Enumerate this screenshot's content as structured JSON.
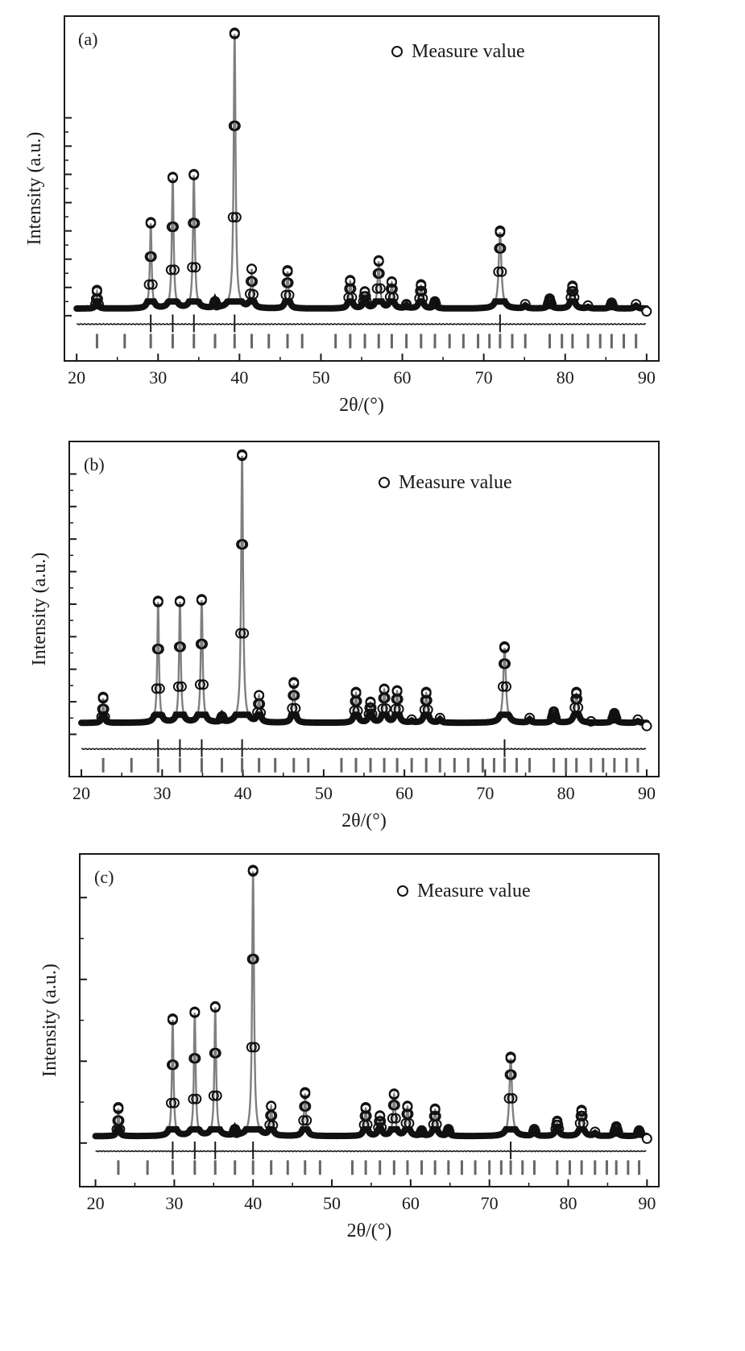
{
  "figure": {
    "panels": [
      "a",
      "b",
      "c"
    ]
  },
  "colors": {
    "measured": "#111111",
    "calculated": "#7f7f7f",
    "difference": "#1a1a1a",
    "bragg": "#666666",
    "axis": "#1a1a1a"
  },
  "chart_data": [
    {
      "type": "line",
      "panel_label": "(a)",
      "xlabel": "2θ/(°)",
      "ylabel": "Intensity (a.u.)",
      "legend": {
        "entries": [
          "Measure value"
        ],
        "placement": "top-right"
      },
      "xlim": [
        18.5,
        91.5
      ],
      "ylim": [
        -1.6,
        10.6
      ],
      "xticks": [
        20,
        30,
        40,
        50,
        60,
        70,
        80,
        90
      ],
      "xtick_labels": [
        "20",
        "30",
        "40",
        "50",
        "60",
        "70",
        "80",
        "90"
      ],
      "yticks": [
        0,
        1,
        2,
        3,
        4,
        5,
        6,
        7
      ],
      "grid": false,
      "background": 0.25,
      "peaks": [
        {
          "x": 22.5,
          "y": 0.85
        },
        {
          "x": 29.1,
          "y": 3.25
        },
        {
          "x": 31.8,
          "y": 4.85
        },
        {
          "x": 34.4,
          "y": 4.95
        },
        {
          "x": 37.0,
          "y": 0.45
        },
        {
          "x": 39.4,
          "y": 9.95
        },
        {
          "x": 41.5,
          "y": 1.6
        },
        {
          "x": 45.9,
          "y": 1.55
        },
        {
          "x": 53.6,
          "y": 1.2
        },
        {
          "x": 55.4,
          "y": 0.8
        },
        {
          "x": 57.1,
          "y": 1.9
        },
        {
          "x": 58.7,
          "y": 1.15
        },
        {
          "x": 60.5,
          "y": 0.35
        },
        {
          "x": 62.3,
          "y": 1.05
        },
        {
          "x": 64.0,
          "y": 0.45
        },
        {
          "x": 72.0,
          "y": 2.95
        },
        {
          "x": 75.1,
          "y": 0.35
        },
        {
          "x": 78.1,
          "y": 0.55
        },
        {
          "x": 80.9,
          "y": 1.0
        },
        {
          "x": 82.8,
          "y": 0.3
        },
        {
          "x": 85.7,
          "y": 0.4
        },
        {
          "x": 88.7,
          "y": 0.35
        }
      ],
      "difference_offset": -0.3,
      "bragg_row": -0.9,
      "bragg_positions": [
        22.5,
        25.9,
        29.1,
        31.8,
        34.4,
        37.0,
        39.4,
        41.5,
        43.6,
        45.9,
        47.7,
        51.8,
        53.6,
        55.4,
        57.1,
        58.7,
        60.5,
        62.3,
        64.0,
        65.8,
        67.5,
        69.3,
        70.7,
        72.0,
        73.5,
        75.1,
        78.1,
        79.6,
        80.9,
        82.8,
        84.3,
        85.7,
        87.2,
        88.7
      ]
    },
    {
      "type": "line",
      "panel_label": "(b)",
      "xlabel": "2θ/(°)",
      "ylabel": "Intensity (a.u.)",
      "legend": {
        "entries": [
          "Measure value"
        ],
        "placement": "top-right"
      },
      "xlim": [
        18.5,
        91.5
      ],
      "ylim": [
        -1.3,
        9.0
      ],
      "xticks": [
        20,
        30,
        40,
        50,
        60,
        70,
        80,
        90
      ],
      "xtick_labels": [
        "20",
        "30",
        "40",
        "50",
        "60",
        "70",
        "80",
        "90"
      ],
      "yticks": [
        0,
        1,
        2,
        3,
        4,
        5,
        6,
        7,
        8
      ],
      "grid": false,
      "background": 0.35,
      "peaks": [
        {
          "x": 22.7,
          "y": 1.1
        },
        {
          "x": 29.5,
          "y": 4.05
        },
        {
          "x": 32.2,
          "y": 4.05
        },
        {
          "x": 34.9,
          "y": 4.1
        },
        {
          "x": 37.4,
          "y": 0.5
        },
        {
          "x": 39.9,
          "y": 8.55
        },
        {
          "x": 42.0,
          "y": 1.15
        },
        {
          "x": 46.3,
          "y": 1.55
        },
        {
          "x": 54.0,
          "y": 1.25
        },
        {
          "x": 55.8,
          "y": 0.95
        },
        {
          "x": 57.5,
          "y": 1.35
        },
        {
          "x": 59.1,
          "y": 1.3
        },
        {
          "x": 60.9,
          "y": 0.4
        },
        {
          "x": 62.7,
          "y": 1.25
        },
        {
          "x": 64.4,
          "y": 0.45
        },
        {
          "x": 72.4,
          "y": 2.65
        },
        {
          "x": 75.5,
          "y": 0.45
        },
        {
          "x": 78.5,
          "y": 0.65
        },
        {
          "x": 81.3,
          "y": 1.25
        },
        {
          "x": 83.1,
          "y": 0.35
        },
        {
          "x": 86.0,
          "y": 0.6
        },
        {
          "x": 88.9,
          "y": 0.4
        }
      ],
      "difference_offset": -0.45,
      "bragg_row": -0.95,
      "bragg_positions": [
        22.7,
        26.2,
        29.5,
        32.2,
        34.9,
        37.4,
        39.9,
        42.0,
        44.0,
        46.3,
        48.1,
        52.2,
        54.0,
        55.8,
        57.5,
        59.1,
        60.9,
        62.7,
        64.4,
        66.2,
        67.9,
        69.7,
        71.1,
        72.4,
        73.9,
        75.5,
        78.5,
        80.0,
        81.3,
        83.1,
        84.6,
        86.0,
        87.5,
        88.9
      ]
    },
    {
      "type": "line",
      "panel_label": "(c)",
      "xlabel": "2θ/(°)",
      "ylabel": "Intensity (a.u.)",
      "legend": {
        "entries": [
          "Measure value"
        ],
        "placement": "top-right"
      },
      "xlim": [
        18.0,
        91.5
      ],
      "ylim": [
        -1.6,
        10.6
      ],
      "xticks": [
        20,
        30,
        40,
        50,
        60,
        70,
        80,
        90
      ],
      "xtick_labels": [
        "20",
        "30",
        "40",
        "50",
        "60",
        "70",
        "80",
        "90"
      ],
      "yticks": [
        0,
        3,
        6,
        9
      ],
      "grid": false,
      "background": 0.25,
      "peaks": [
        {
          "x": 22.9,
          "y": 1.25
        },
        {
          "x": 29.8,
          "y": 4.5
        },
        {
          "x": 32.6,
          "y": 4.75
        },
        {
          "x": 35.2,
          "y": 4.95
        },
        {
          "x": 37.7,
          "y": 0.45
        },
        {
          "x": 40.0,
          "y": 9.95
        },
        {
          "x": 42.3,
          "y": 1.3
        },
        {
          "x": 46.6,
          "y": 1.8
        },
        {
          "x": 54.3,
          "y": 1.25
        },
        {
          "x": 56.1,
          "y": 0.95
        },
        {
          "x": 57.9,
          "y": 1.75
        },
        {
          "x": 59.6,
          "y": 1.3
        },
        {
          "x": 61.4,
          "y": 0.4
        },
        {
          "x": 63.1,
          "y": 1.2
        },
        {
          "x": 64.8,
          "y": 0.45
        },
        {
          "x": 72.7,
          "y": 3.1
        },
        {
          "x": 75.7,
          "y": 0.45
        },
        {
          "x": 78.6,
          "y": 0.75
        },
        {
          "x": 81.7,
          "y": 1.15
        },
        {
          "x": 83.4,
          "y": 0.35
        },
        {
          "x": 86.1,
          "y": 0.55
        },
        {
          "x": 89.0,
          "y": 0.4
        }
      ],
      "difference_offset": -0.3,
      "bragg_row": -0.9,
      "bragg_positions": [
        22.9,
        26.6,
        29.8,
        32.6,
        35.2,
        37.7,
        40.0,
        42.3,
        44.4,
        46.6,
        48.5,
        52.6,
        54.3,
        56.1,
        57.9,
        59.6,
        61.4,
        63.1,
        64.8,
        66.5,
        68.2,
        70.0,
        71.5,
        72.7,
        74.2,
        75.7,
        78.6,
        80.2,
        81.7,
        83.4,
        84.9,
        86.1,
        87.6,
        89.0
      ]
    }
  ]
}
